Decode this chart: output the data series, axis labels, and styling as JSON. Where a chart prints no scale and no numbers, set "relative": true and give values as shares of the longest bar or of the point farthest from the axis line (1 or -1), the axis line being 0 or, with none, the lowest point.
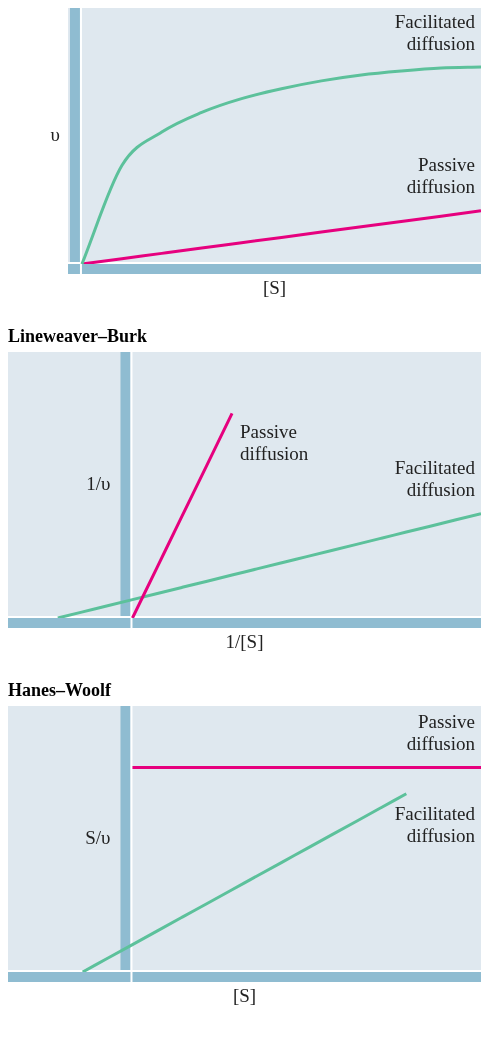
{
  "chart_data": [
    {
      "type": "line",
      "categories": [
        null,
        null,
        null,
        null,
        null,
        null,
        null,
        null,
        null,
        null,
        null
      ],
      "relative": true,
      "xlabel": "[S]",
      "ylabel": "υ",
      "marker": "none",
      "series": [
        {
          "name": "Facilitated diffusion",
          "color": "#5cc19b",
          "values": [
            0,
            0.5,
            0.67,
            0.77,
            0.84,
            0.89,
            0.93,
            0.96,
            0.98,
            0.995,
            1
          ]
        },
        {
          "name": "Passive diffusion",
          "color": "#e6007e",
          "values": [
            0,
            0.027,
            0.054,
            0.081,
            0.108,
            0.135,
            0.162,
            0.189,
            0.216,
            0.243,
            0.27
          ]
        }
      ]
    },
    {
      "type": "line",
      "title": "Lineweaver–Burk",
      "categories": [
        null,
        null,
        null,
        null,
        null,
        null,
        null,
        null,
        null,
        null,
        null,
        null,
        null,
        null,
        null,
        null,
        null,
        null,
        null,
        null
      ],
      "relative": true,
      "xlabel": "1/[S]",
      "ylabel": "1/υ",
      "marker": "none",
      "series": [
        {
          "name": "Passive diffusion",
          "color": "#e6007e",
          "values": [
            null,
            null,
            null,
            null,
            null,
            0,
            0.25,
            0.5,
            0.75,
            1,
            null,
            null,
            null,
            null,
            null,
            null,
            null,
            null,
            null,
            null
          ]
        },
        {
          "name": "Facilitated diffusion",
          "color": "#5cc19b",
          "values": [
            null,
            null,
            0,
            0.03,
            0.06,
            0.09,
            0.12,
            0.15,
            0.18,
            0.21,
            0.24,
            0.27,
            0.3,
            0.33,
            0.36,
            0.39,
            0.42,
            0.45,
            0.48,
            0.51
          ]
        }
      ]
    },
    {
      "type": "line",
      "title": "Hanes–Woolf",
      "categories": [
        null,
        null,
        null,
        null,
        null,
        null,
        null,
        null,
        null,
        null,
        null,
        null,
        null,
        null,
        null,
        null,
        null,
        null,
        null,
        null
      ],
      "relative": true,
      "xlabel": "[S]",
      "ylabel": "S/υ",
      "marker": "none",
      "series": [
        {
          "name": "Passive diffusion",
          "color": "#e6007e",
          "values": [
            null,
            null,
            null,
            null,
            null,
            1,
            1,
            1,
            1,
            1,
            1,
            1,
            1,
            1,
            1,
            1,
            1,
            1,
            1,
            1
          ]
        },
        {
          "name": "Facilitated diffusion",
          "color": "#5cc19b",
          "values": [
            null,
            null,
            null,
            0,
            0.067,
            0.134,
            0.201,
            0.268,
            0.335,
            0.402,
            0.469,
            0.536,
            0.603,
            0.67,
            0.737,
            0.804,
            0.871,
            null,
            null,
            null
          ]
        }
      ]
    }
  ]
}
